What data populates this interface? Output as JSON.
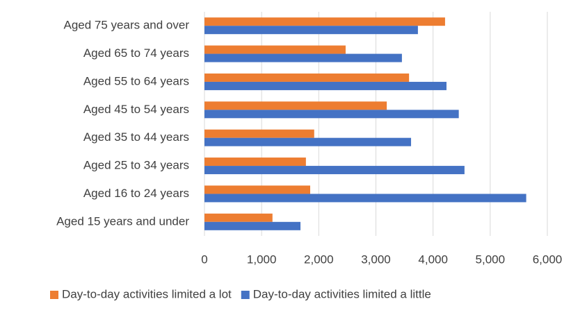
{
  "chart_data": {
    "type": "bar",
    "orientation": "horizontal",
    "categories": [
      "Aged 75 years and over",
      "Aged 65 to 74 years",
      "Aged 55 to 64 years",
      "Aged 45 to 54 years",
      "Aged 35 to 44 years",
      "Aged 25 to 34 years",
      "Aged 16 to 24 years",
      "Aged 15 years and under"
    ],
    "series": [
      {
        "name": "Day-to-day activities limited a lot",
        "color": "#ed7d31",
        "values": [
          4210,
          2470,
          3580,
          3190,
          1920,
          1775,
          1850,
          1190
        ]
      },
      {
        "name": "Day-to-day activities limited a little",
        "color": "#4472c4",
        "values": [
          3735,
          3455,
          4235,
          4450,
          3615,
          4550,
          5630,
          1680
        ]
      }
    ],
    "xlim": [
      0,
      6000
    ],
    "xticks": [
      0,
      {
        "value": 1000,
        "label": "1,000"
      },
      {
        "value": 2000,
        "label": "2,000"
      },
      {
        "value": 3000,
        "label": "3,000"
      },
      {
        "value": 4000,
        "label": "4,000"
      },
      {
        "value": 5000,
        "label": "5,000"
      },
      {
        "value": 6000,
        "label": "6,000"
      }
    ],
    "grid": true,
    "legend": "bottom"
  }
}
